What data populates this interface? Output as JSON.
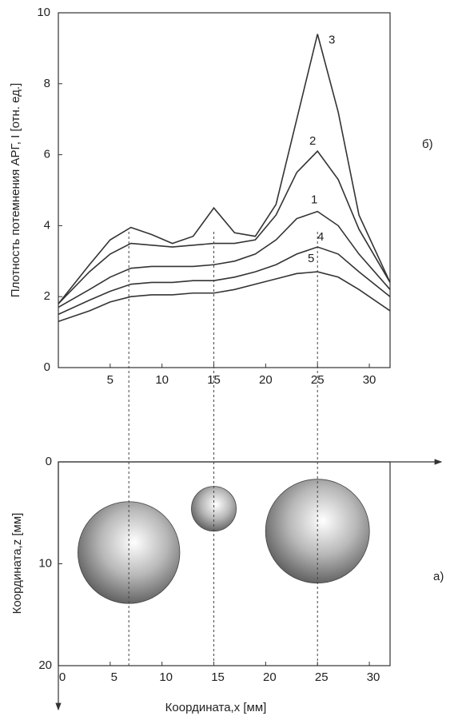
{
  "chart_data": [
    {
      "type": "line",
      "ylabel": "Плотность потемнения АРГ, I [отн. ед.]",
      "annotation": "б)",
      "x": [
        0,
        3,
        5,
        7,
        9,
        11,
        13,
        15,
        17,
        19,
        21,
        23,
        25,
        27,
        29,
        32
      ],
      "series": [
        {
          "name": "3",
          "color": "#333333",
          "values": [
            1.8,
            2.9,
            3.6,
            3.95,
            3.75,
            3.5,
            3.7,
            4.5,
            3.8,
            3.7,
            4.6,
            7.0,
            9.4,
            7.2,
            4.3,
            2.4
          ]
        },
        {
          "name": "2",
          "color": "#333333",
          "values": [
            1.8,
            2.7,
            3.2,
            3.5,
            3.45,
            3.4,
            3.45,
            3.5,
            3.5,
            3.6,
            4.3,
            5.5,
            6.1,
            5.3,
            3.9,
            2.4
          ]
        },
        {
          "name": "1",
          "color": "#333333",
          "values": [
            1.7,
            2.2,
            2.55,
            2.8,
            2.85,
            2.85,
            2.85,
            2.9,
            3.0,
            3.2,
            3.6,
            4.2,
            4.4,
            4.0,
            3.2,
            2.2
          ]
        },
        {
          "name": "4",
          "color": "#333333",
          "values": [
            1.5,
            1.9,
            2.15,
            2.35,
            2.4,
            2.4,
            2.45,
            2.45,
            2.55,
            2.7,
            2.9,
            3.2,
            3.4,
            3.2,
            2.7,
            2.0
          ]
        },
        {
          "name": "5",
          "color": "#333333",
          "values": [
            1.3,
            1.6,
            1.85,
            2.0,
            2.05,
            2.05,
            2.1,
            2.1,
            2.2,
            2.35,
            2.5,
            2.65,
            2.7,
            2.55,
            2.2,
            1.6
          ]
        }
      ],
      "xlim": [
        0,
        32
      ],
      "ylim": [
        0,
        10
      ],
      "xticks": [
        5,
        10,
        15,
        20,
        25,
        30
      ],
      "yticks": [
        0,
        2,
        4,
        6,
        8,
        10
      ]
    },
    {
      "type": "bubble",
      "xlabel": "Координата,x [мм]",
      "ylabel": "Координата,z [мм]",
      "annotation": "а)",
      "x": [
        6.8,
        15,
        25
      ],
      "y": [
        8.9,
        4.6,
        6.8
      ],
      "sizes": [
        5.0,
        2.2,
        5.1
      ],
      "xlim": [
        0,
        32
      ],
      "ylim": [
        0,
        20
      ],
      "y_inverted": true,
      "xticks": [
        0,
        5,
        10,
        15,
        20,
        25,
        30
      ],
      "yticks": [
        0,
        10,
        20
      ]
    }
  ]
}
